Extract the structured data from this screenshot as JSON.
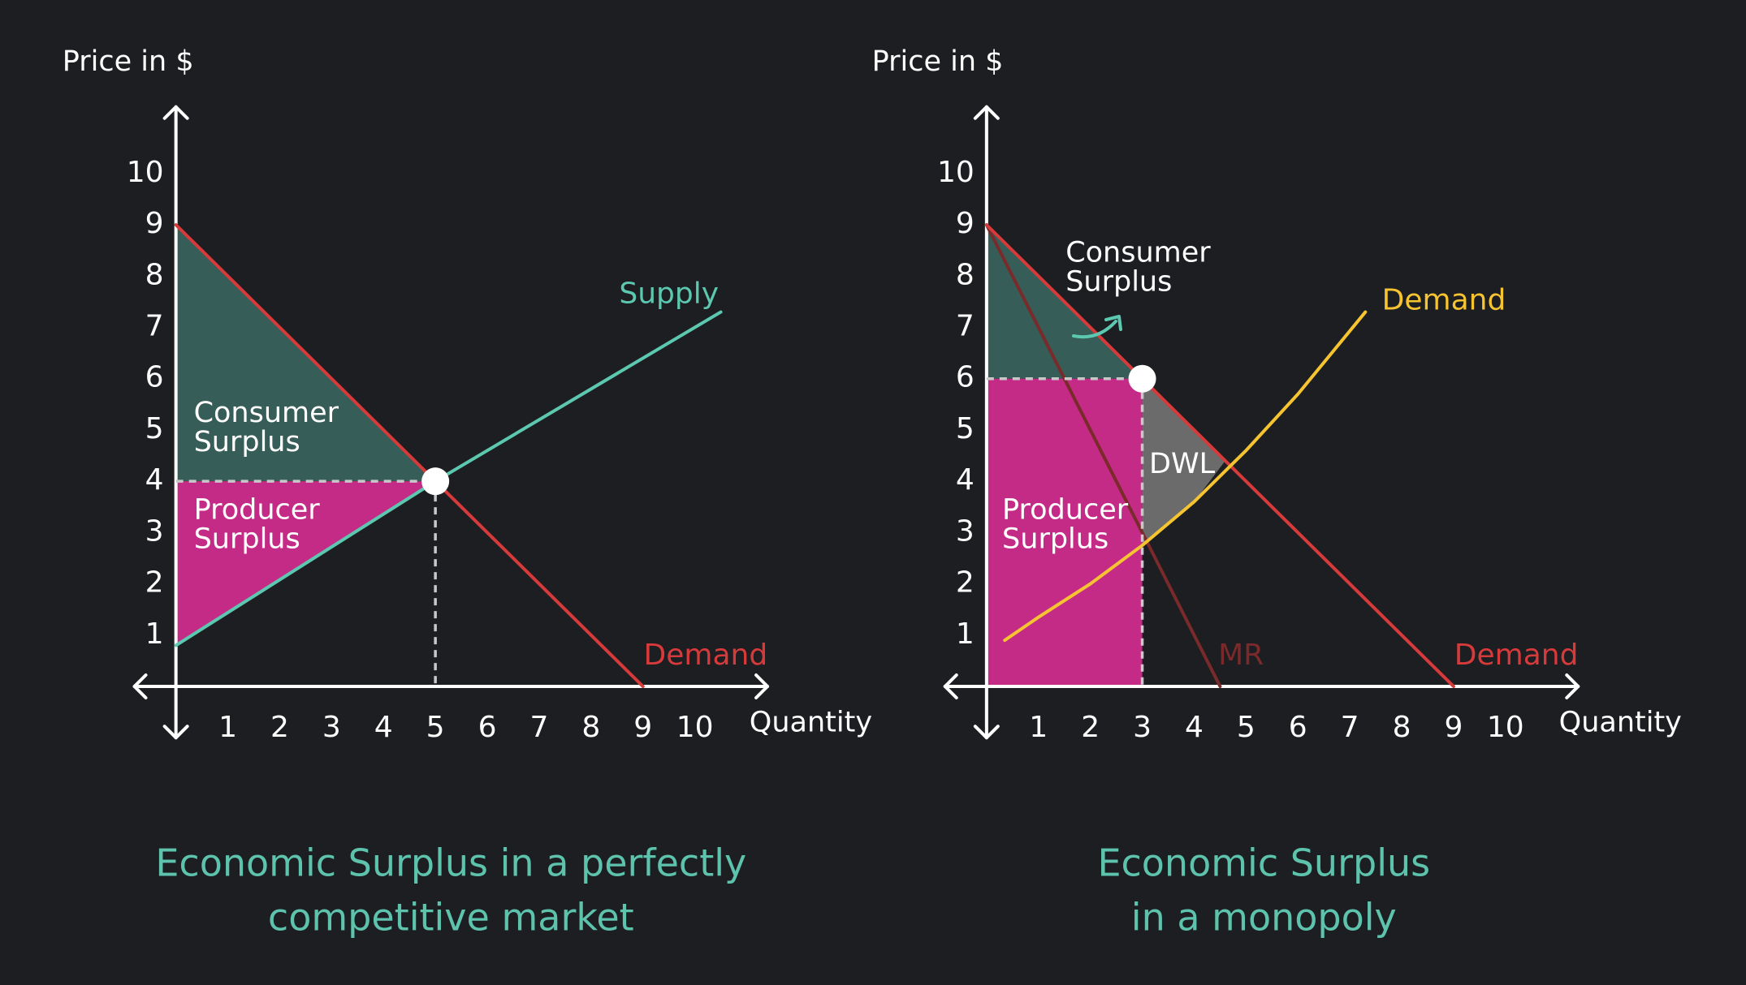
{
  "chart_data": [
    {
      "type": "line",
      "title_lines": [
        "Economic Surplus in a perfectly",
        "competitive market"
      ],
      "xlabel": "Quantity",
      "ylabel": "Price in $",
      "xlim": [
        -0.8,
        11.4
      ],
      "ylim": [
        -1,
        11.3
      ],
      "xticks": [
        1,
        2,
        3,
        4,
        5,
        6,
        7,
        8,
        9,
        10
      ],
      "yticks": [
        1,
        2,
        3,
        4,
        5,
        6,
        7,
        8,
        9,
        10
      ],
      "regions": [
        {
          "label_lines": [
            "Consumer",
            "Surplus"
          ],
          "color": "#365d57",
          "x": [
            0,
            5,
            0
          ],
          "y": [
            9,
            4,
            4
          ]
        },
        {
          "label_lines": [
            "Producer",
            "Surplus"
          ],
          "color": "#c42b86",
          "x": [
            0,
            5,
            0
          ],
          "y": [
            4,
            4,
            0.8
          ]
        }
      ],
      "series": [
        {
          "name": "Demand",
          "color": "#d63a3a",
          "x": [
            0,
            9
          ],
          "values": [
            9,
            0
          ]
        },
        {
          "name": "Supply",
          "color": "#5cc8b0",
          "x": [
            0,
            5,
            10.5
          ],
          "values": [
            0.8,
            4,
            7.3
          ]
        }
      ],
      "points": [
        {
          "x": 5,
          "y": 4
        }
      ]
    },
    {
      "type": "line",
      "title_lines": [
        "Economic Surplus",
        "in a monopoly"
      ],
      "xlabel": "Quantity",
      "ylabel": "Price in $",
      "xlim": [
        -0.8,
        11.4
      ],
      "ylim": [
        -1,
        11.3
      ],
      "xticks": [
        1,
        2,
        3,
        4,
        5,
        6,
        7,
        8,
        9,
        10
      ],
      "yticks": [
        1,
        2,
        3,
        4,
        5,
        6,
        7,
        8,
        9,
        10
      ],
      "regions": [
        {
          "label_lines": [
            "Consumer",
            "Surplus"
          ],
          "color": "#365d57",
          "x": [
            0,
            3,
            0
          ],
          "y": [
            9,
            6,
            6
          ]
        },
        {
          "label_lines": [
            "Producer",
            "Surplus"
          ],
          "color": "#c42b86",
          "x": [
            0,
            3,
            3,
            0
          ],
          "y": [
            6,
            6,
            0,
            0
          ]
        },
        {
          "label_lines": [
            "DWL"
          ],
          "color": "#6b6b6b",
          "x": [
            3,
            4.6,
            4,
            3
          ],
          "y": [
            6,
            4.4,
            3.6,
            2.75
          ]
        }
      ],
      "series": [
        {
          "name": "MR",
          "color": "#7a2a2a",
          "x": [
            0,
            4.5
          ],
          "values": [
            9,
            0
          ]
        },
        {
          "name": "Demand",
          "color": "#d63a3a",
          "x": [
            0,
            9
          ],
          "values": [
            9,
            0
          ]
        },
        {
          "name": "Demand",
          "color": "#f7c431",
          "x": [
            0.35,
            1,
            2,
            3,
            4,
            5,
            6,
            7.3
          ],
          "values": [
            0.9,
            1.35,
            2,
            2.75,
            3.6,
            4.6,
            5.7,
            7.3
          ]
        }
      ],
      "points": [
        {
          "x": 3,
          "y": 6
        }
      ]
    }
  ]
}
